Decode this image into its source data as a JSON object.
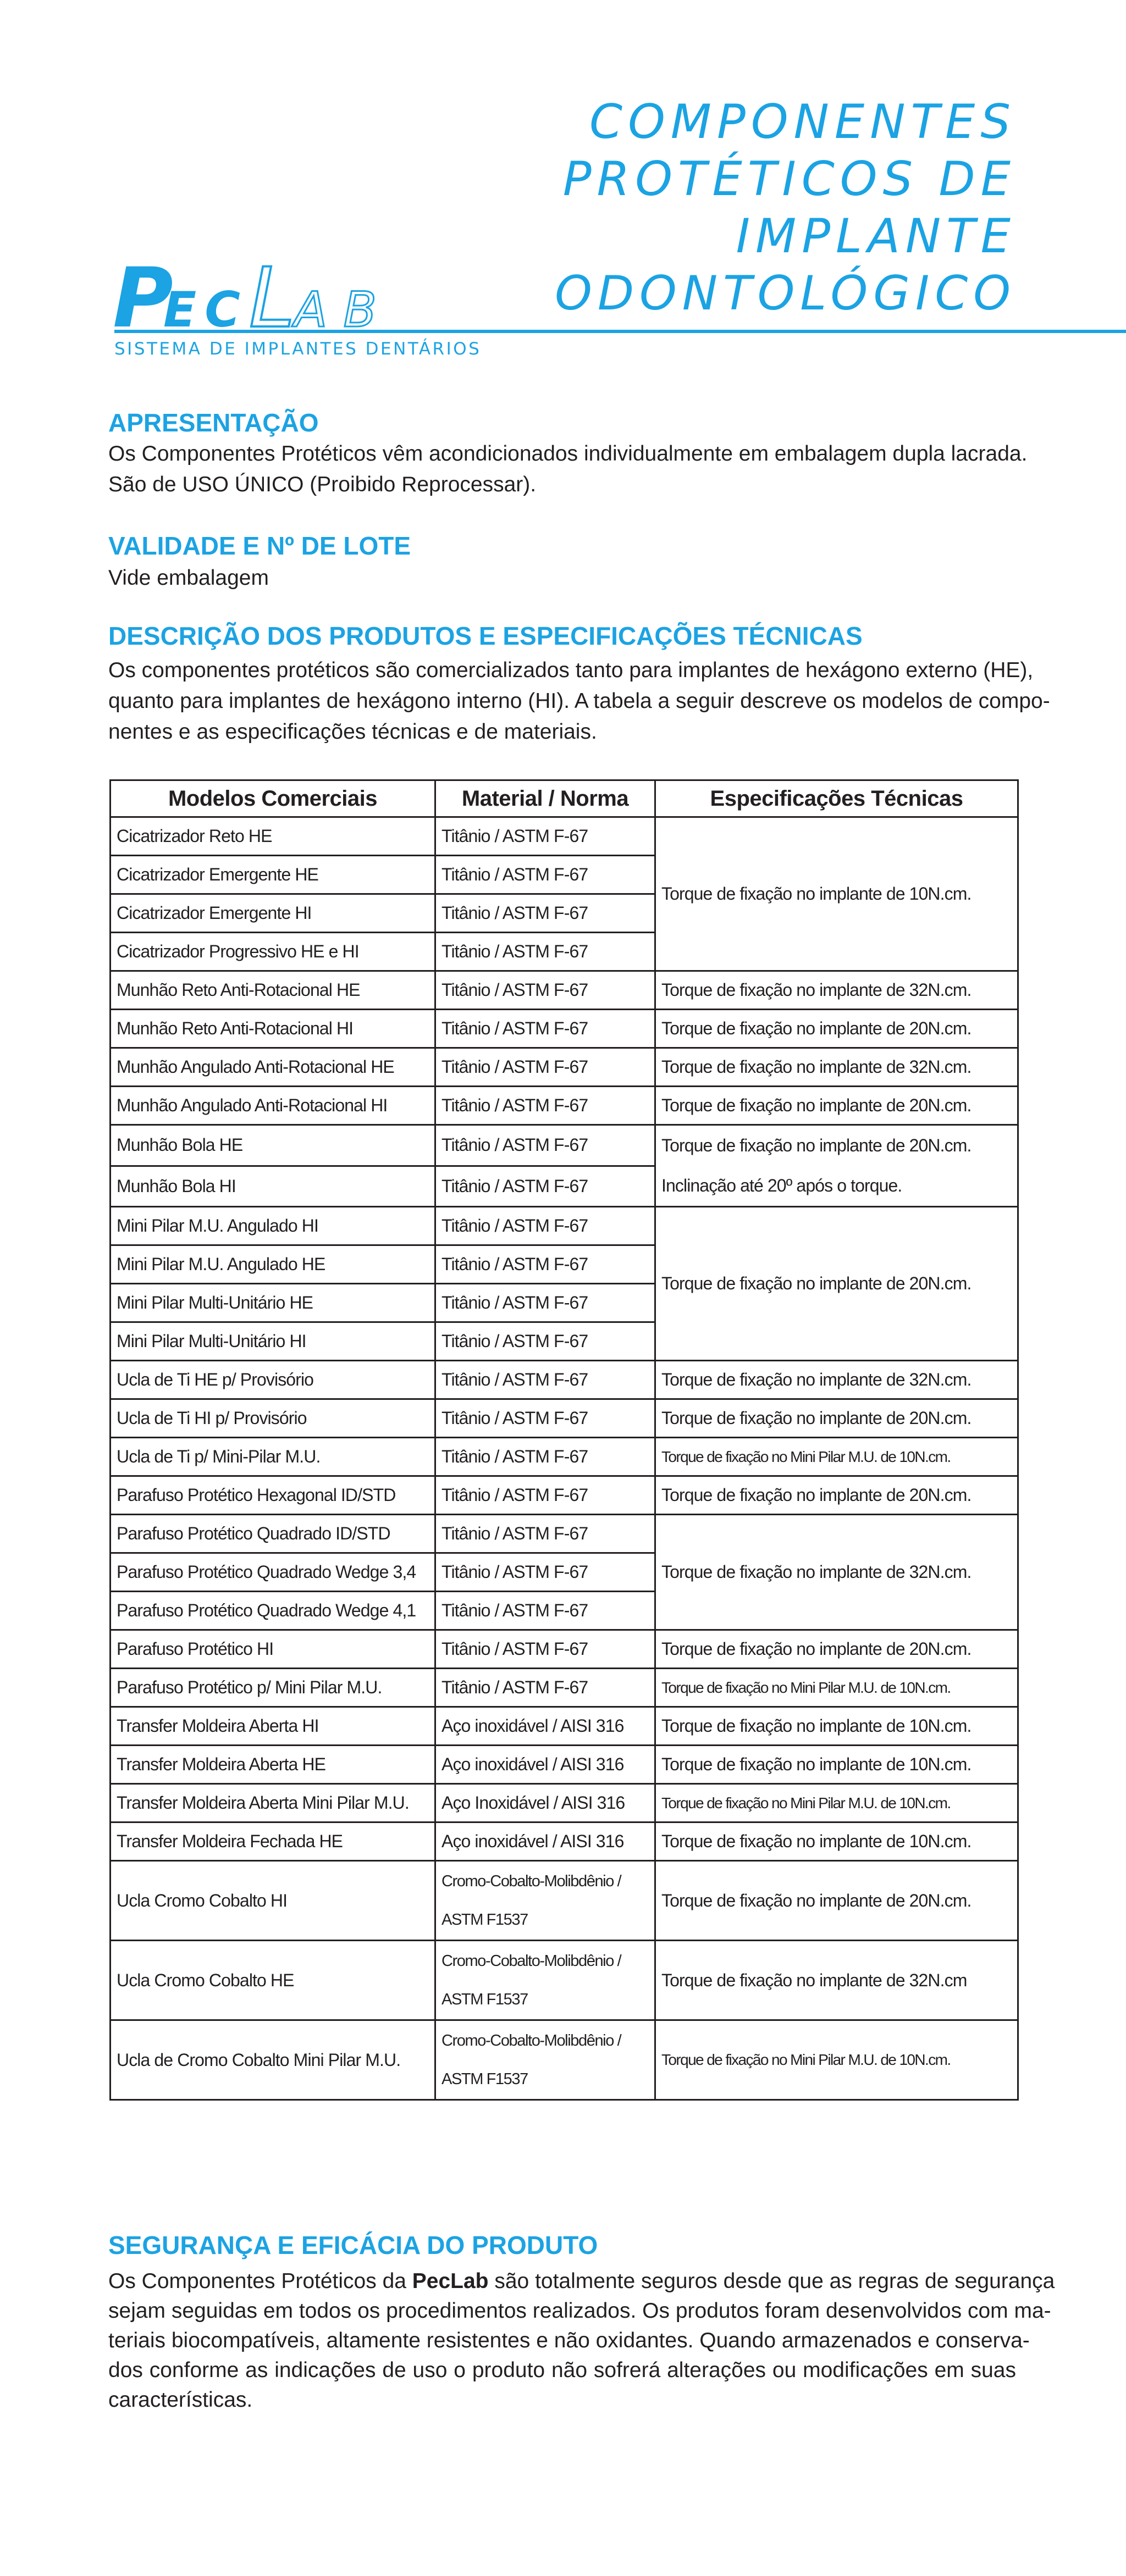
{
  "brand": {
    "logo_text": "PecLab",
    "logo_parts": [
      "P",
      "EC",
      "L",
      "AB"
    ],
    "tagline": "SISTEMA DE IMPLANTES DENTÁRIOS",
    "color": "#1ba3e3"
  },
  "title_lines": [
    "COMPONENTES",
    "PROTÉTICOS DE",
    "IMPLANTE",
    "ODONTOLÓGICO"
  ],
  "sections": {
    "apresentacao": {
      "heading": "APRESENTAÇÃO",
      "lines": [
        "Os Componentes Protéticos vêm acondicionados individualmente em embalagem dupla lacrada.",
        "São de USO ÚNICO (Proibido Reprocessar)."
      ]
    },
    "validade": {
      "heading": "VALIDADE E Nº DE LOTE",
      "lines": [
        "Vide embalagem"
      ]
    },
    "descricao": {
      "heading": "DESCRIÇÃO DOS PRODUTOS E ESPECIFICAÇÕES TÉCNICAS",
      "lines": [
        "Os componentes protéticos são comercializados tanto para implantes de hexágono externo (HE),",
        "quanto para implantes de hexágono interno (HI). A tabela a seguir descreve os modelos de compo-",
        "nentes e as especificações técnicas e de materiais."
      ]
    },
    "seguranca": {
      "heading": "SEGURANÇA E EFICÁCIA DO PRODUTO",
      "line1_pre": "Os Componentes Protéticos da ",
      "line1_bold": "PecLab",
      "line1_post": " são totalmente seguros desde que as regras de segurança",
      "lines": [
        "sejam seguidas em todos os procedimentos realizados. Os produtos foram desenvolvidos com ma-",
        "teriais biocompatíveis, altamente resistentes e não oxidantes. Quando armazenados e conserva-",
        "dos conforme as indicações de uso o produto não sofrerá alterações ou modificações em suas",
        "características."
      ]
    }
  },
  "table": {
    "headers": [
      "Modelos Comerciais",
      "Material / Norma",
      "Especificações Técnicas"
    ],
    "rows": [
      {
        "model": "Cicatrizador Reto HE",
        "material": [
          "Titânio / ASTM F-67"
        ]
      },
      {
        "model": "Cicatrizador Emergente HE",
        "material": [
          "Titânio / ASTM F-67"
        ]
      },
      {
        "model": "Cicatrizador Emergente HI",
        "material": [
          "Titânio / ASTM F-67"
        ]
      },
      {
        "model": "Cicatrizador Progressivo HE e HI",
        "material": [
          "Titânio / ASTM F-67"
        ]
      },
      {
        "model": "Munhão Reto Anti-Rotacional HE",
        "material": [
          "Titânio / ASTM F-67"
        ]
      },
      {
        "model": "Munhão Reto Anti-Rotacional HI",
        "material": [
          "Titânio / ASTM F-67"
        ]
      },
      {
        "model": "Munhão Angulado Anti-Rotacional HE",
        "material": [
          "Titânio / ASTM F-67"
        ]
      },
      {
        "model": "Munhão Angulado Anti-Rotacional HI",
        "material": [
          "Titânio / ASTM F-67"
        ]
      },
      {
        "model": "Munhão Bola HE",
        "material": [
          "Titânio / ASTM F-67"
        ]
      },
      {
        "model": "Munhão Bola HI",
        "material": [
          "Titânio / ASTM F-67"
        ]
      },
      {
        "model": "Mini Pilar M.U. Angulado HI",
        "material": [
          "Titânio / ASTM F-67"
        ]
      },
      {
        "model": "Mini Pilar M.U. Angulado HE",
        "material": [
          "Titânio / ASTM F-67"
        ]
      },
      {
        "model": "Mini Pilar Multi-Unitário HE",
        "material": [
          "Titânio / ASTM F-67"
        ]
      },
      {
        "model": "Mini Pilar Multi-Unitário HI",
        "material": [
          "Titânio / ASTM F-67"
        ]
      },
      {
        "model": "Ucla de Ti HE p/ Provisório",
        "material": [
          "Titânio / ASTM F-67"
        ]
      },
      {
        "model": "Ucla de Ti HI p/ Provisório",
        "material": [
          "Titânio / ASTM F-67"
        ]
      },
      {
        "model": "Ucla de Ti p/ Mini-Pilar M.U.",
        "material": [
          "Titânio / ASTM F-67"
        ]
      },
      {
        "model": "Parafuso Protético Hexagonal ID/STD",
        "material": [
          "Titânio / ASTM F-67"
        ]
      },
      {
        "model": "Parafuso Protético Quadrado ID/STD",
        "material": [
          "Titânio / ASTM F-67"
        ]
      },
      {
        "model": "Parafuso Protético Quadrado Wedge 3,4",
        "material": [
          "Titânio / ASTM F-67"
        ]
      },
      {
        "model": "Parafuso Protético Quadrado Wedge 4,1",
        "material": [
          "Titânio / ASTM F-67"
        ]
      },
      {
        "model": "Parafuso Protético HI",
        "material": [
          "Titânio / ASTM F-67"
        ]
      },
      {
        "model": "Parafuso Protético p/ Mini Pilar M.U.",
        "material": [
          "Titânio / ASTM F-67"
        ]
      },
      {
        "model": "Transfer Moldeira Aberta HI",
        "material": [
          "Aço inoxidável / AISI 316"
        ]
      },
      {
        "model": "Transfer Moldeira Aberta HE",
        "material": [
          "Aço inoxidável / AISI 316"
        ]
      },
      {
        "model": "Transfer Moldeira Aberta Mini Pilar M.U.",
        "material": [
          "Aço Inoxidável / AISI 316"
        ]
      },
      {
        "model": "Transfer Moldeira Fechada HE",
        "material": [
          "Aço inoxidável / AISI 316"
        ]
      },
      {
        "model": "Ucla Cromo Cobalto HI",
        "material": [
          "Cromo-Cobalto-Molibdênio /",
          "ASTM F1537"
        ]
      },
      {
        "model": "Ucla Cromo Cobalto HE",
        "material": [
          "Cromo-Cobalto-Molibdênio /",
          "ASTM F1537"
        ]
      },
      {
        "model": "Ucla de Cromo Cobalto Mini Pilar M.U.",
        "material": [
          "Cromo-Cobalto-Molibdênio /",
          "ASTM F1537"
        ]
      }
    ],
    "specs": [
      {
        "lines": [
          "Torque de fixação no implante de 10N.cm."
        ],
        "span": 4
      },
      {
        "lines": [
          "Torque de fixação no implante de 32N.cm."
        ],
        "span": 1
      },
      {
        "lines": [
          "Torque de fixação no implante de 20N.cm."
        ],
        "span": 1
      },
      {
        "lines": [
          "Torque de fixação no implante de 32N.cm."
        ],
        "span": 1
      },
      {
        "lines": [
          "Torque de fixação no implante de 20N.cm."
        ],
        "span": 1
      },
      {
        "lines": [
          "Torque de fixação no implante de 20N.cm.",
          "Inclinação até 20º após o torque."
        ],
        "span": 2
      },
      {
        "lines": [
          "Torque de fixação no implante de 20N.cm."
        ],
        "span": 4
      },
      {
        "lines": [
          "Torque de fixação no implante de 32N.cm."
        ],
        "span": 1
      },
      {
        "lines": [
          "Torque de fixação no implante de 20N.cm."
        ],
        "span": 1
      },
      {
        "lines": [
          "Torque de fixação no Mini Pilar M.U. de 10N.cm."
        ],
        "span": 1
      },
      {
        "lines": [
          "Torque de fixação no implante de 20N.cm."
        ],
        "span": 1
      },
      {
        "lines": [
          "Torque de fixação no implante de 32N.cm."
        ],
        "span": 3
      },
      {
        "lines": [
          "Torque de fixação no implante de 20N.cm."
        ],
        "span": 1
      },
      {
        "lines": [
          "Torque de fixação no Mini Pilar M.U. de 10N.cm."
        ],
        "span": 1
      },
      {
        "lines": [
          "Torque de fixação no implante de 10N.cm."
        ],
        "span": 1
      },
      {
        "lines": [
          "Torque de fixação no implante de 10N.cm."
        ],
        "span": 1
      },
      {
        "lines": [
          "Torque de fixação no Mini Pilar M.U. de 10N.cm."
        ],
        "span": 1
      },
      {
        "lines": [
          "Torque de fixação no implante de 10N.cm."
        ],
        "span": 1
      },
      {
        "lines": [
          "Torque de fixação no implante de 20N.cm."
        ],
        "span": 1
      },
      {
        "lines": [
          "Torque de fixação no implante de 32N.cm"
        ],
        "span": 1
      },
      {
        "lines": [
          "Torque de fixação no Mini Pilar M.U. de 10N.cm."
        ],
        "span": 1
      }
    ]
  }
}
